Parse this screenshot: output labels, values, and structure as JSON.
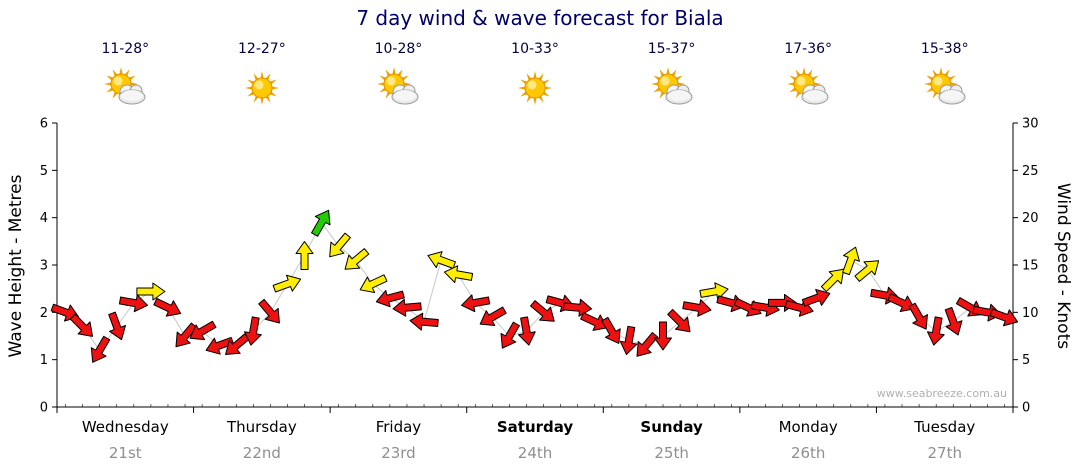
{
  "title": "7 day wind & wave forecast for Biala",
  "watermark": "www.seabreeze.com.au",
  "left_axis": {
    "label": "Wave Height - Metres",
    "min": 0,
    "max": 6,
    "ticks": [
      0,
      1,
      2,
      3,
      4,
      5,
      6
    ]
  },
  "right_axis": {
    "label": "Wind Speed - Knots",
    "min": 0,
    "max": 30,
    "ticks": [
      0,
      5,
      10,
      15,
      20,
      25,
      30
    ]
  },
  "days": [
    {
      "name": "Wednesday",
      "date": "21st",
      "temp": "11-28°",
      "icon": "sun-cloud",
      "bold": false
    },
    {
      "name": "Thursday",
      "date": "22nd",
      "temp": "12-27°",
      "icon": "sun",
      "bold": false
    },
    {
      "name": "Friday",
      "date": "23rd",
      "temp": "10-28°",
      "icon": "sun-cloud",
      "bold": false
    },
    {
      "name": "Saturday",
      "date": "24th",
      "temp": "10-33°",
      "icon": "sun",
      "bold": true
    },
    {
      "name": "Sunday",
      "date": "25th",
      "temp": "15-37°",
      "icon": "sun-cloud",
      "bold": true
    },
    {
      "name": "Monday",
      "date": "26th",
      "temp": "17-36°",
      "icon": "sun-cloud",
      "bold": false
    },
    {
      "name": "Tuesday",
      "date": "27th",
      "temp": "15-38°",
      "icon": "sun-cloud",
      "bold": false
    }
  ],
  "colors": {
    "title": "#000066",
    "date_text": "#8f8f8f",
    "arrow_red": "#ee1111",
    "arrow_yellow": "#ffee00",
    "arrow_green": "#22cc00",
    "arrow_outline": "#000000",
    "connector": "#c8c8c8",
    "watermark": "#b0b0b0"
  },
  "arrow_thresholds": {
    "green": 18,
    "yellow": 12
  },
  "chart_data": {
    "type": "wind-arrows",
    "title": "7 day wind & wave forecast for Biala",
    "xlabel_days": [
      "Wednesday 21st",
      "Thursday 22nd",
      "Friday 23rd",
      "Saturday 24th",
      "Sunday 25th",
      "Monday 26th",
      "Tuesday 27th"
    ],
    "ylabel_left": "Wave Height - Metres",
    "ylabel_right": "Wind Speed - Knots",
    "ylim_left": [
      0,
      6
    ],
    "ylim_right": [
      0,
      30
    ],
    "points_per_day": 8,
    "units": "knots",
    "knots": [
      10,
      8.5,
      6,
      8.5,
      11,
      12.2,
      10.5,
      7.5,
      8,
      6.5,
      6.5,
      8,
      10,
      13,
      16,
      19.5,
      17,
      15.5,
      13,
      11.5,
      10.5,
      9,
      15.5,
      14,
      11,
      9.5,
      7.5,
      8,
      10,
      11,
      10.5,
      9,
      8,
      7,
      6.5,
      7.5,
      9,
      10.5,
      12.2,
      11,
      10.5,
      10.5,
      11,
      10.5,
      11.5,
      13.5,
      15.5,
      14.5,
      11.8,
      11,
      9.5,
      8,
      9,
      10.5,
      10,
      9.5
    ],
    "dirs": [
      20,
      45,
      120,
      70,
      10,
      0,
      25,
      130,
      150,
      160,
      140,
      100,
      50,
      -20,
      -90,
      -60,
      130,
      140,
      155,
      165,
      175,
      185,
      200,
      190,
      170,
      150,
      120,
      80,
      40,
      15,
      5,
      25,
      60,
      100,
      130,
      90,
      45,
      10,
      -10,
      15,
      25,
      10,
      0,
      15,
      -20,
      -45,
      -70,
      -40,
      10,
      25,
      60,
      100,
      70,
      30,
      10,
      20
    ]
  }
}
